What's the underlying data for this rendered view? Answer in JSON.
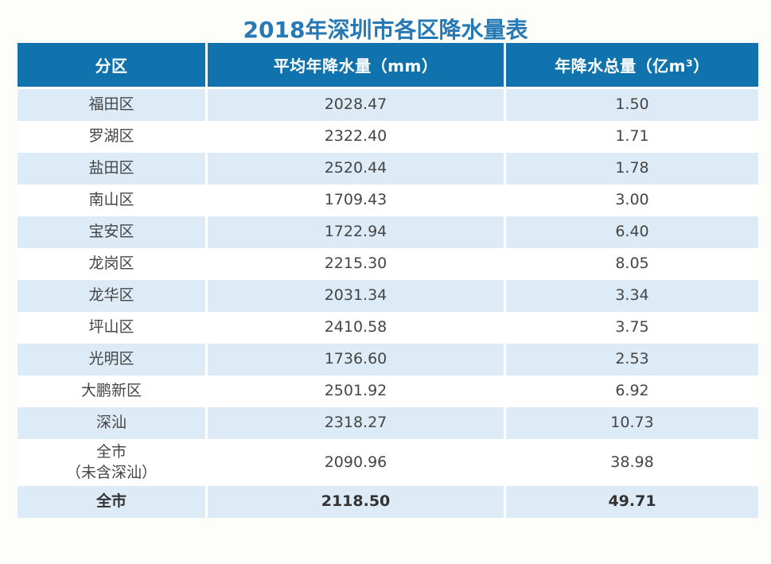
{
  "colors": {
    "header_bg": "#1173ae",
    "header_text": "#ffffff",
    "row_alt_bg": "#dcebf5",
    "row_bg": "#ffffff",
    "title_color": "#2679b5",
    "body_text": "#454545",
    "emphasis_text": "#333333"
  },
  "chart_data": {
    "type": "table",
    "title": "2018年深圳市各区降水量表",
    "columns": [
      "分区",
      "平均年降水量（mm）",
      "年降水总量（亿m³）"
    ],
    "row_keys": [
      "district",
      "avg_annual_rainfall_mm",
      "annual_total_rainfall_yi_m3"
    ],
    "rows": [
      {
        "district": "福田区",
        "avg_annual_rainfall_mm": "2028.47",
        "annual_total_rainfall_yi_m3": "1.50"
      },
      {
        "district": "罗湖区",
        "avg_annual_rainfall_mm": "2322.40",
        "annual_total_rainfall_yi_m3": "1.71"
      },
      {
        "district": "盐田区",
        "avg_annual_rainfall_mm": "2520.44",
        "annual_total_rainfall_yi_m3": "1.78"
      },
      {
        "district": "南山区",
        "avg_annual_rainfall_mm": "1709.43",
        "annual_total_rainfall_yi_m3": "3.00"
      },
      {
        "district": "宝安区",
        "avg_annual_rainfall_mm": "1722.94",
        "annual_total_rainfall_yi_m3": "6.40"
      },
      {
        "district": "龙岗区",
        "avg_annual_rainfall_mm": "2215.30",
        "annual_total_rainfall_yi_m3": "8.05"
      },
      {
        "district": "龙华区",
        "avg_annual_rainfall_mm": "2031.34",
        "annual_total_rainfall_yi_m3": "3.34"
      },
      {
        "district": "坪山区",
        "avg_annual_rainfall_mm": "2410.58",
        "annual_total_rainfall_yi_m3": "3.75"
      },
      {
        "district": "光明区",
        "avg_annual_rainfall_mm": "1736.60",
        "annual_total_rainfall_yi_m3": "2.53"
      },
      {
        "district": "大鹏新区",
        "avg_annual_rainfall_mm": "2501.92",
        "annual_total_rainfall_yi_m3": "6.92"
      },
      {
        "district": "深汕",
        "avg_annual_rainfall_mm": "2318.27",
        "annual_total_rainfall_yi_m3": "10.73"
      },
      {
        "district": "全市\n（未含深汕）",
        "avg_annual_rainfall_mm": "2090.96",
        "annual_total_rainfall_yi_m3": "38.98"
      },
      {
        "district": "全市",
        "avg_annual_rainfall_mm": "2118.50",
        "annual_total_rainfall_yi_m3": "49.71",
        "emphasis": true
      }
    ]
  }
}
